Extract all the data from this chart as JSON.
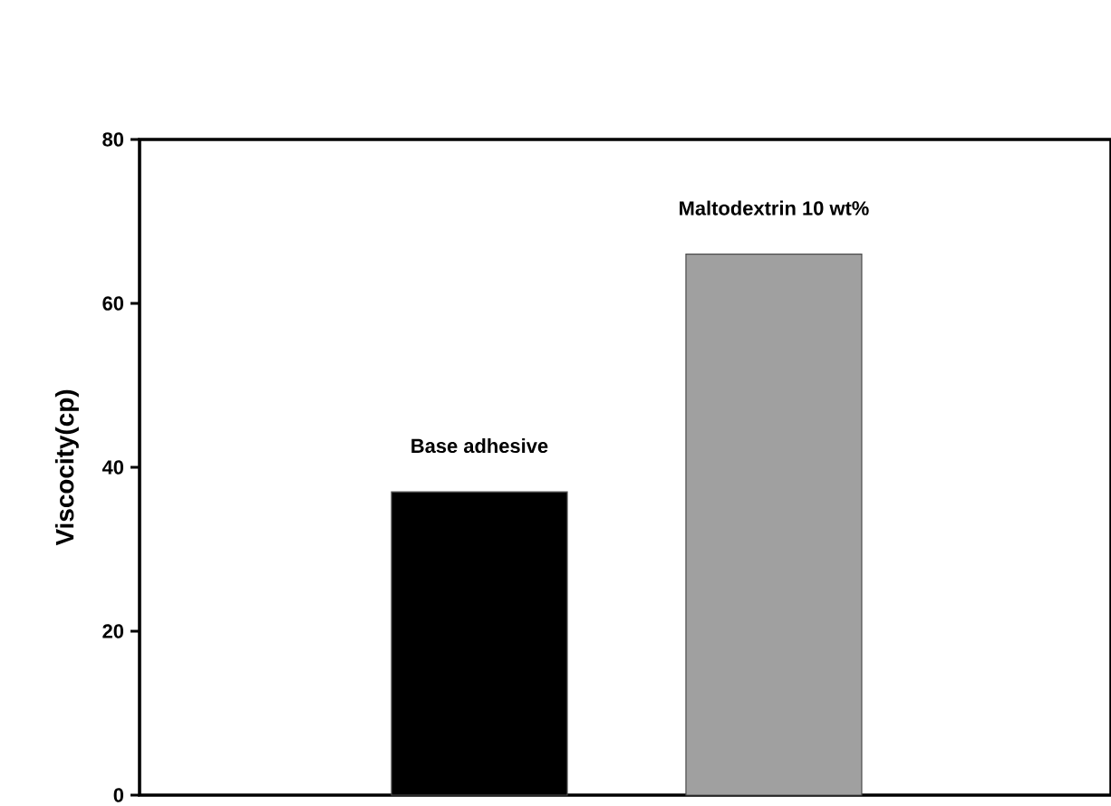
{
  "chart_data": {
    "type": "bar",
    "ylabel": "Viscocity(cp)",
    "categories": [
      "Base adhesive",
      "Maltodextrin 10 wt%"
    ],
    "values": [
      37,
      66
    ],
    "colors": [
      "#000000",
      "#a0a0a0"
    ],
    "ylim": [
      0,
      80
    ],
    "yticks": [
      0,
      20,
      40,
      60,
      80
    ],
    "grid": false
  }
}
